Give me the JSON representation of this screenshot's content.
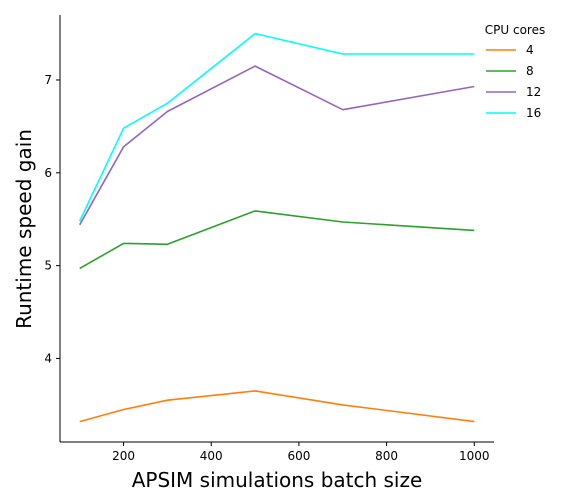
{
  "chart_data": {
    "type": "line",
    "xlabel": "APSIM simulations batch size",
    "ylabel": "Runtime speed gain",
    "xlim": [
      55,
      1045
    ],
    "ylim": [
      3.1,
      7.7
    ],
    "xticks": [
      200,
      400,
      600,
      800,
      1000
    ],
    "yticks": [
      4,
      5,
      6,
      7
    ],
    "grid": false,
    "legend": {
      "title": "CPU cores",
      "placement": "top-right"
    },
    "x": [
      100,
      200,
      300,
      500,
      700,
      1000
    ],
    "series": [
      {
        "name": "4",
        "color": "#ff7f0e",
        "values": [
          3.32,
          3.45,
          3.55,
          3.65,
          3.5,
          3.32
        ]
      },
      {
        "name": "8",
        "color": "#2ca02c",
        "values": [
          4.97,
          5.24,
          5.23,
          5.59,
          5.47,
          5.38
        ]
      },
      {
        "name": "12",
        "color": "#9467bd",
        "values": [
          5.44,
          6.28,
          6.66,
          7.15,
          6.68,
          6.93
        ]
      },
      {
        "name": "16",
        "color": "#00ffff",
        "values": [
          5.48,
          6.48,
          6.75,
          7.5,
          7.28,
          7.28
        ]
      }
    ]
  }
}
